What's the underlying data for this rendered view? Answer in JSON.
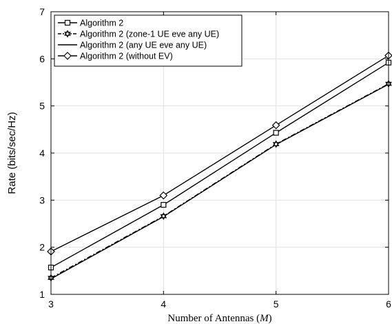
{
  "chart_data": {
    "type": "line",
    "xlabel": "Number of Antennas (M)",
    "xlabel_prefix": "Number of Antennas (",
    "xlabel_var": "M",
    "xlabel_suffix": ")",
    "ylabel": "Rate (bits/sec/Hz)",
    "x": [
      3,
      4,
      5,
      6
    ],
    "xlim": [
      3,
      6
    ],
    "ylim": [
      1,
      7
    ],
    "xticks": [
      "3",
      "4",
      "5",
      "6"
    ],
    "yticks": [
      "1",
      "2",
      "3",
      "4",
      "5",
      "6",
      "7"
    ],
    "grid": true,
    "legend_position": "top-left",
    "series": [
      {
        "name": "Algorithm 2",
        "values": [
          1.57,
          2.9,
          4.43,
          5.92
        ],
        "marker": "square",
        "dash": "solid",
        "color": "#000000"
      },
      {
        "name": "Algorithm 2 (zone-1 UE eve any UE)",
        "values": [
          1.35,
          2.66,
          4.19,
          5.47
        ],
        "marker": "hexagram",
        "dash": "dashdot",
        "color": "#000000"
      },
      {
        "name": "Algorithm 2 (any UE eve any UE)",
        "values": [
          1.33,
          2.65,
          4.18,
          5.46
        ],
        "marker": "none",
        "dash": "solid",
        "color": "#000000"
      },
      {
        "name": "Algorithm 2 (without EV)",
        "values": [
          1.91,
          3.1,
          4.59,
          6.07
        ],
        "marker": "diamond",
        "dash": "solid",
        "color": "#000000"
      }
    ]
  }
}
